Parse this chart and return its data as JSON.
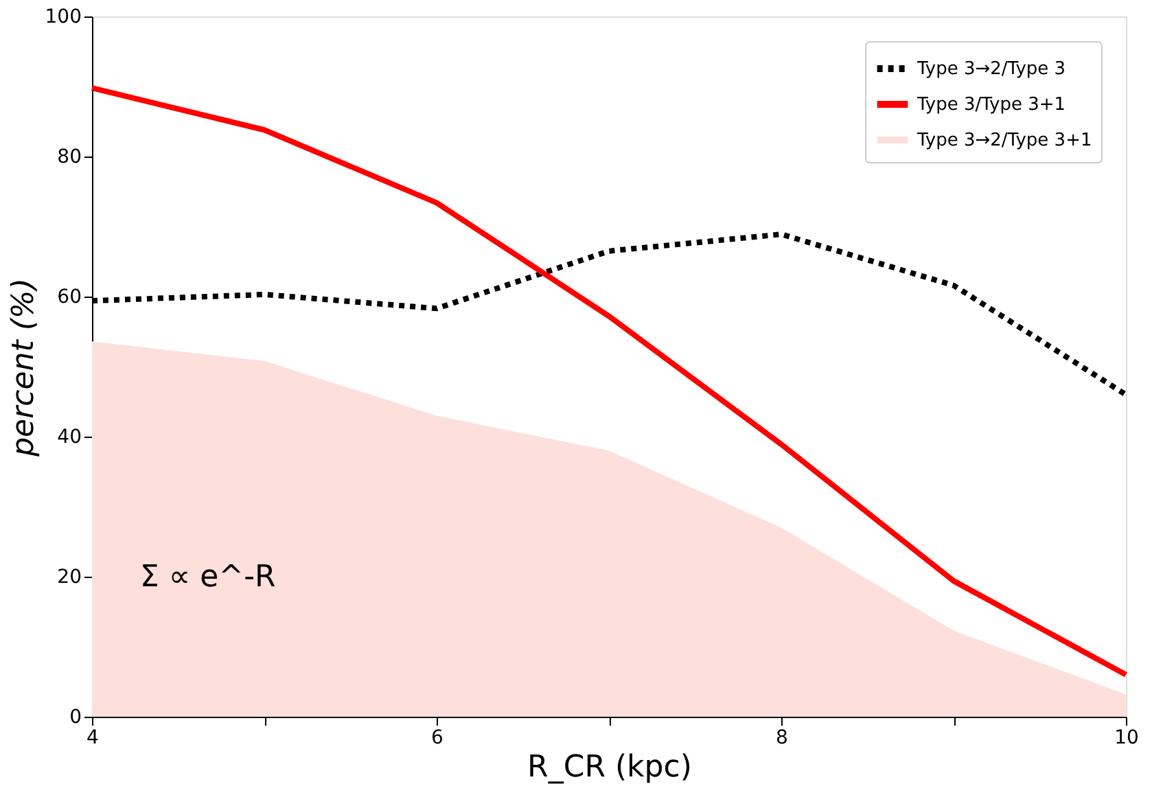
{
  "chart_data": {
    "type": "line",
    "xlabel": "R_CR (kpc)",
    "ylabel": "percent (%)",
    "x": [
      4,
      5,
      6,
      7,
      8,
      9,
      10
    ],
    "series": [
      {
        "name": "Type 3→2/Type 3",
        "color": "#000000",
        "line_style": "dotted",
        "values": [
          59.4,
          60.3,
          58.3,
          66.5,
          68.9,
          61.6,
          46
        ]
      },
      {
        "name": "Type 3/Type 3+1",
        "color": "#ff0000",
        "line_style": "solid",
        "values": [
          89.8,
          83.8,
          73.4,
          57.2,
          38.9,
          19.4,
          6
        ]
      },
      {
        "name": "Type 3→2/Type 3+1",
        "color": "#fde0dc",
        "type": "area",
        "values": [
          53.6,
          50.8,
          43,
          38,
          27,
          12.3,
          3.2
        ]
      }
    ],
    "xlim": [
      4,
      10
    ],
    "xticks": [
      4,
      {
        "value": 5,
        "label": null
      },
      6,
      {
        "value": 7,
        "label": null
      },
      8,
      {
        "value": 9,
        "label": null
      },
      10
    ],
    "ylim": [
      0,
      100
    ],
    "yticks": [
      0,
      20,
      40,
      60,
      80,
      100
    ],
    "grid": false,
    "legend": "top right",
    "marker": "none",
    "annotations": [
      "Σ ∝ e^-R"
    ]
  }
}
